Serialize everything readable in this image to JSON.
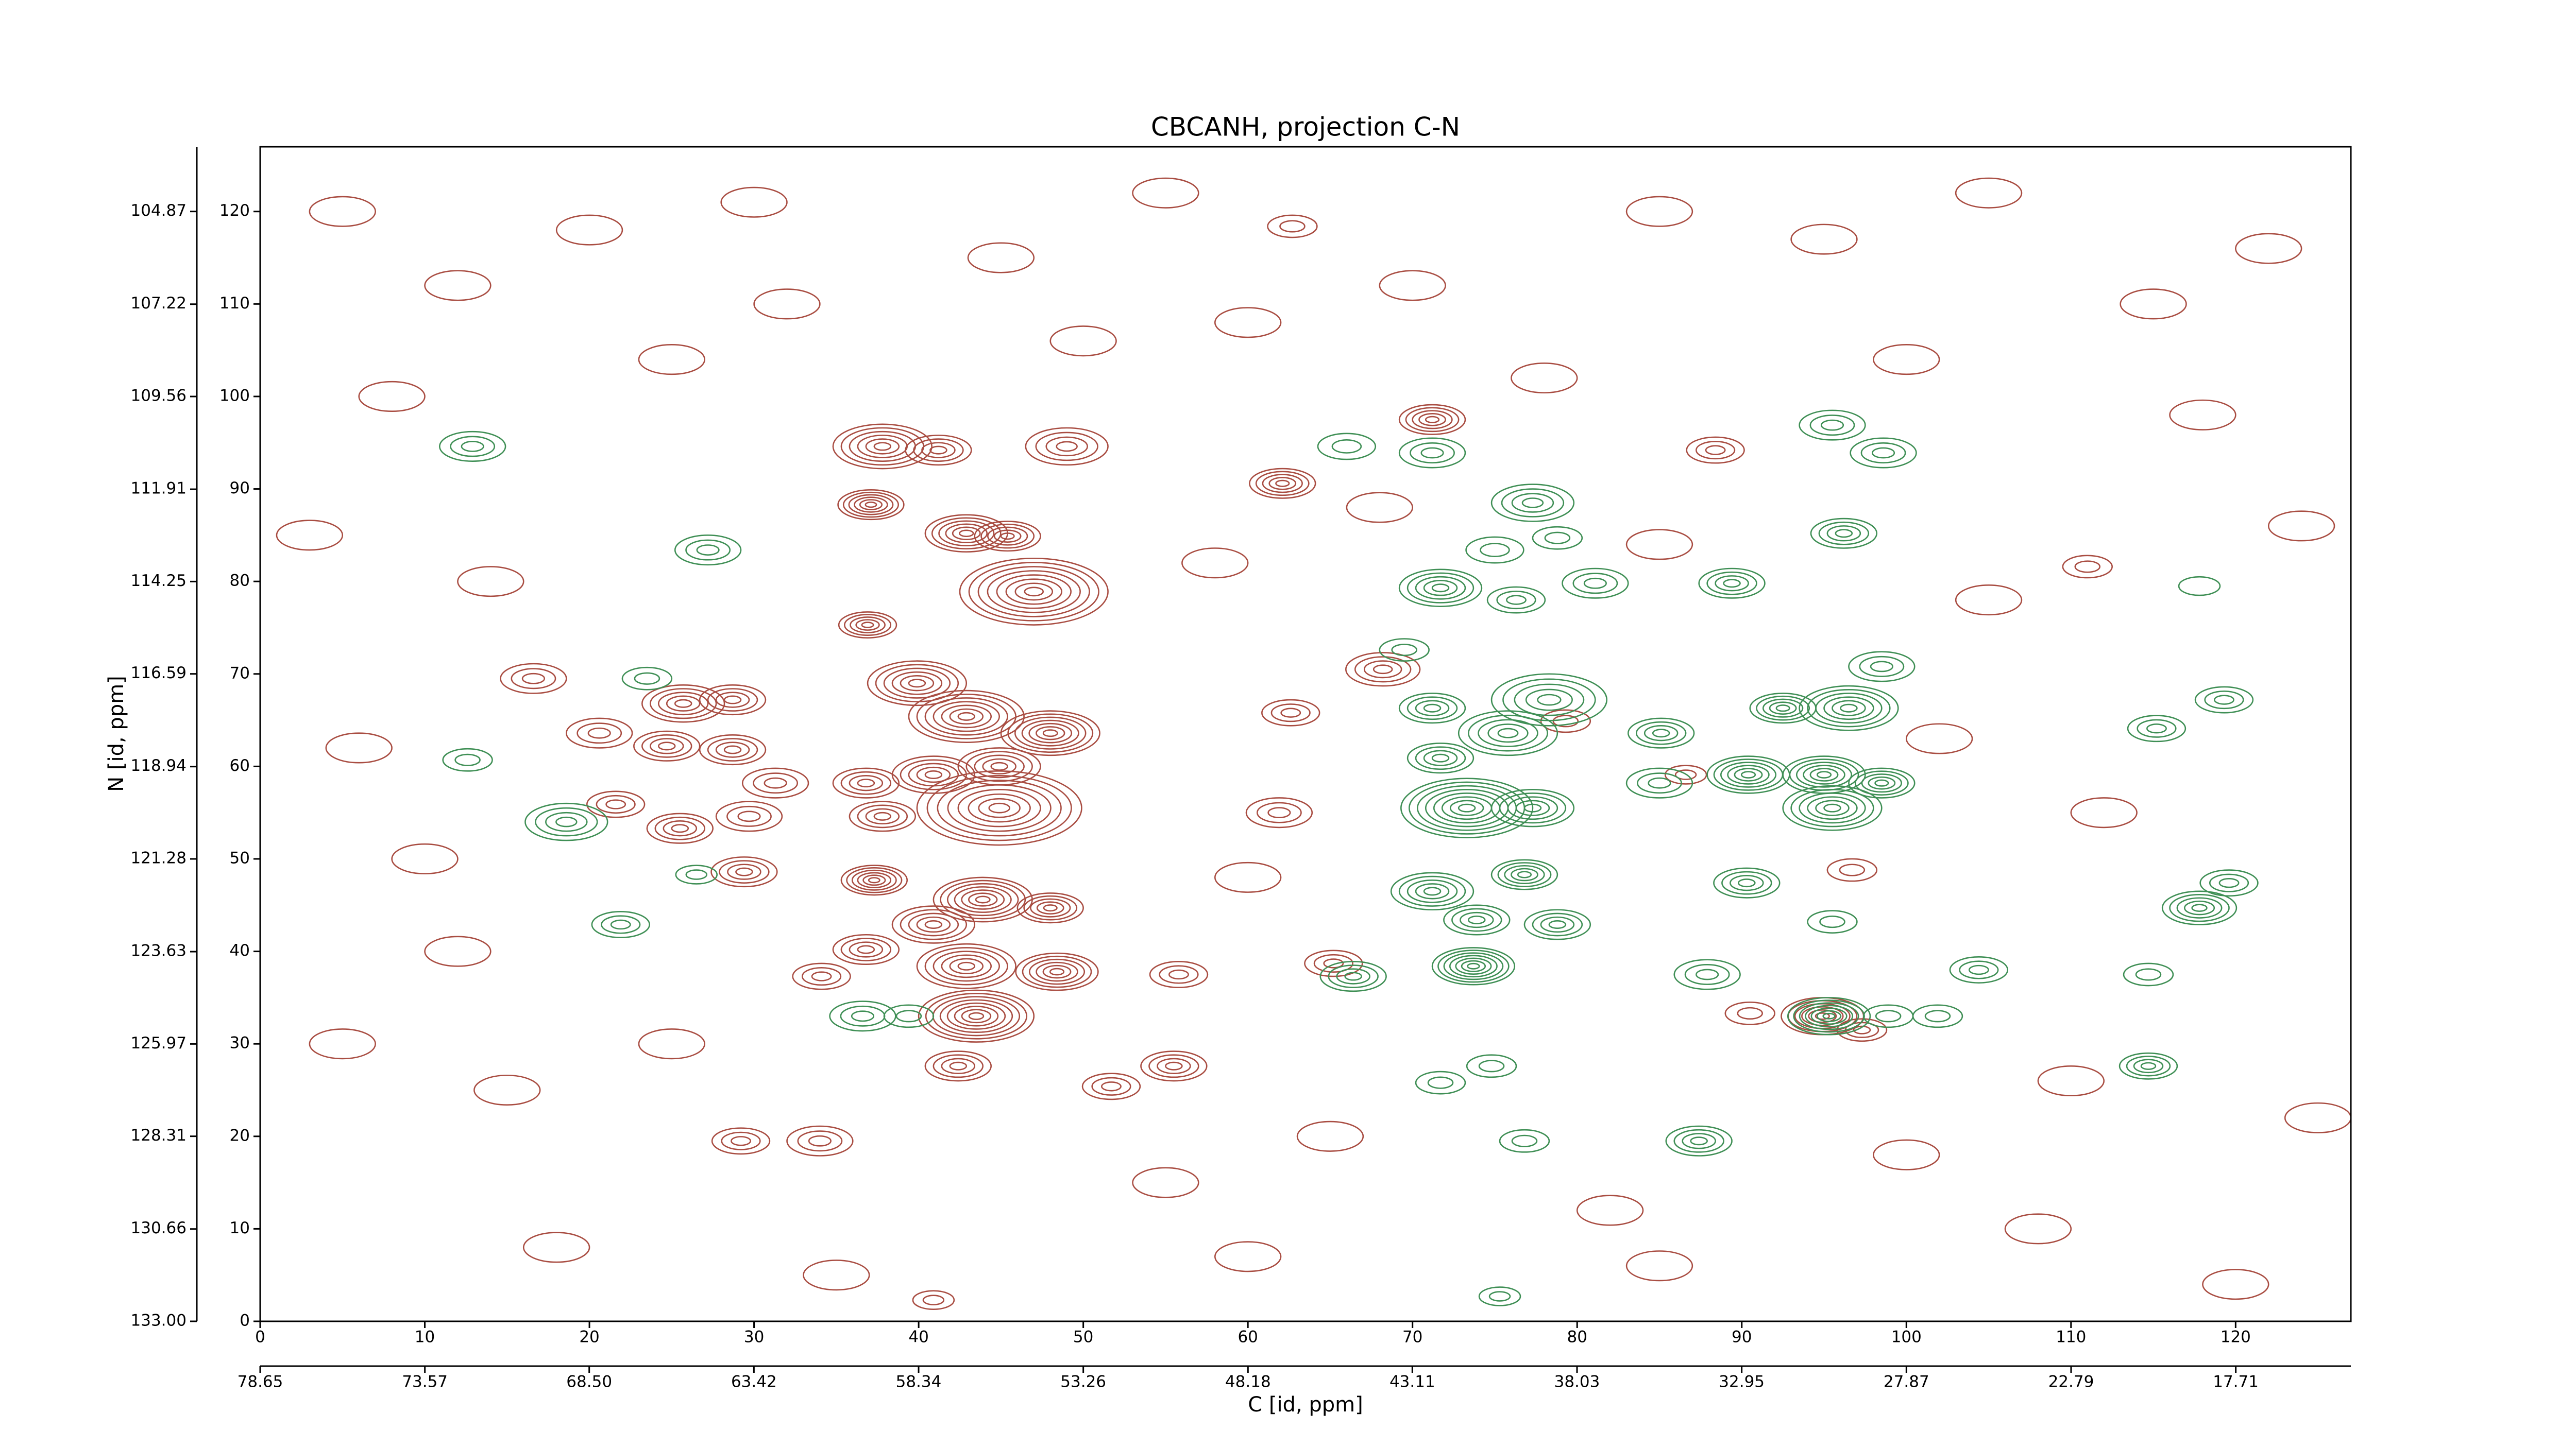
{
  "chart_data": {
    "type": "contour",
    "title": "CBCANH, projection C-N",
    "xlabel": "C [id, ppm]",
    "ylabel": "N [id, ppm]",
    "xlim": [
      0,
      127
    ],
    "ylim": [
      0,
      127
    ],
    "xticks": [
      0,
      10,
      20,
      30,
      40,
      50,
      60,
      70,
      80,
      90,
      100,
      110,
      120
    ],
    "yticks": [
      0,
      10,
      20,
      30,
      40,
      50,
      60,
      70,
      80,
      90,
      100,
      110,
      120
    ],
    "x2lim": [
      78.65,
      14.16
    ],
    "x2ticks": [
      78.65,
      73.57,
      {
        "value": 68.5,
        "label": "68.50"
      },
      63.42,
      58.34,
      53.26,
      48.18,
      43.11,
      38.03,
      32.95,
      27.87,
      22.79,
      17.71
    ],
    "y2lim": [
      133,
      103.23
    ],
    "y2ticks": [
      {
        "value": 133,
        "label": "133.00"
      },
      130.66,
      128.31,
      125.97,
      123.63,
      121.28,
      118.94,
      116.59,
      114.25,
      111.91,
      109.56,
      107.22,
      104.87
    ],
    "series": [
      {
        "color": "#a94d42",
        "x": [
          37.8,
          41.2,
          49,
          37.1,
          42.9,
          45.4,
          47,
          36.9,
          71.2,
          62.1,
          88.4,
          16.6,
          25.7,
          28.7,
          20.6,
          24.7,
          28.7,
          39.9,
          42.9,
          48,
          44.9,
          40.9,
          36.8,
          44.9,
          31.3,
          21.6,
          25.5,
          29.7,
          37.8,
          29.4,
          37.3,
          43.9,
          48,
          40.9,
          36.8,
          42.9,
          48.4,
          34.1,
          43.5,
          42.4,
          55.5,
          51.7,
          55.8,
          68.2,
          62.6,
          61.9,
          65.2,
          29.2,
          34,
          79.3,
          94.9,
          96.7,
          111,
          97.3,
          62.7,
          90.5,
          86.6,
          40.9,
          5,
          12,
          20,
          30,
          45,
          55,
          60,
          70,
          85,
          95,
          105,
          115,
          122,
          8,
          25,
          50,
          78,
          100,
          118,
          3,
          14,
          58,
          85,
          105,
          124,
          6,
          10,
          12,
          5,
          15,
          25,
          55,
          65,
          82,
          100,
          110,
          125,
          18,
          35,
          60,
          85,
          108,
          120,
          32,
          68,
          102,
          112,
          60
        ],
        "y": [
          94.6,
          94.2,
          94.6,
          88.3,
          85.2,
          84.9,
          78.9,
          75.3,
          97.5,
          90.6,
          94.2,
          69.5,
          66.8,
          67.2,
          63.6,
          62.2,
          61.8,
          69,
          65.4,
          63.6,
          60,
          59.1,
          58.2,
          55.5,
          58.2,
          55.9,
          53.3,
          54.6,
          54.6,
          48.6,
          47.7,
          45.6,
          44.7,
          42.9,
          40.2,
          38.4,
          37.8,
          37.3,
          33,
          27.6,
          27.6,
          25.4,
          37.5,
          70.5,
          65.8,
          55,
          38.7,
          19.5,
          19.5,
          64.9,
          33,
          48.8,
          81.6,
          31.5,
          118.4,
          33.3,
          59.1,
          2.3,
          120,
          112,
          118,
          121,
          115,
          122,
          108,
          112,
          120,
          117,
          122,
          110,
          116,
          100,
          104,
          106,
          102,
          104,
          98,
          85,
          80,
          82,
          84,
          78,
          86,
          62,
          50,
          40,
          30,
          25,
          30,
          15,
          20,
          12,
          18,
          26,
          22,
          8,
          5,
          7,
          6,
          10,
          4,
          110,
          88,
          63,
          55,
          48
        ],
        "widths": [
          6,
          4,
          5,
          4,
          5,
          4,
          9,
          3.5,
          4,
          4,
          3.5,
          4,
          5,
          4,
          4,
          4,
          4,
          6,
          7,
          6,
          5,
          5,
          4,
          10,
          4,
          3.5,
          4,
          4,
          4,
          4,
          4,
          6,
          4,
          5,
          4,
          6,
          5,
          3.5,
          7,
          4,
          4,
          3.5,
          3.5,
          4.5,
          3.5,
          4,
          3.5,
          3.5,
          4,
          3,
          5,
          3,
          3,
          3,
          3,
          3,
          2.5,
          2.5,
          4,
          4,
          4,
          4,
          4,
          4,
          4,
          4,
          4,
          4,
          4,
          4,
          4,
          4,
          4,
          4,
          4,
          4,
          4,
          4,
          4,
          4,
          4,
          4,
          4,
          4,
          4,
          4,
          4,
          4,
          4,
          4,
          4,
          4,
          4,
          4,
          4,
          4,
          4,
          4,
          4,
          4,
          4,
          4,
          4,
          4,
          4,
          4
        ],
        "levels": [
          6,
          4,
          4,
          6,
          6,
          5,
          8,
          5,
          5,
          5,
          3,
          3,
          5,
          4,
          3,
          4,
          4,
          6,
          7,
          7,
          5,
          5,
          4,
          8,
          3,
          3,
          4,
          3,
          4,
          4,
          6,
          7,
          5,
          5,
          4,
          6,
          6,
          3,
          8,
          4,
          4,
          3,
          3,
          4,
          3,
          3,
          3,
          3,
          3,
          2,
          6,
          2,
          2,
          3,
          2,
          2,
          2,
          2,
          1,
          1,
          1,
          1,
          1,
          1,
          1,
          1,
          1,
          1,
          1,
          1,
          1,
          1,
          1,
          1,
          1,
          1,
          1,
          1,
          1,
          1,
          1,
          1,
          1,
          1,
          1,
          1,
          1,
          1,
          1,
          1,
          1,
          1,
          1,
          1,
          1,
          1,
          1,
          1,
          1,
          1,
          1,
          1,
          1,
          1,
          1,
          1
        ]
      },
      {
        "color": "#3f8f55",
        "x": [
          12.9,
          27.2,
          23.5,
          12.6,
          18.6,
          21.9,
          26.5,
          36.6,
          39.4,
          71.2,
          66,
          77.3,
          78.8,
          75,
          71.7,
          76.3,
          81.1,
          69.5,
          78.3,
          71.2,
          75.8,
          71.7,
          85.1,
          85,
          89.4,
          95.5,
          98.6,
          96.2,
          98.5,
          92.5,
          96.5,
          90.4,
          95,
          98.5,
          95.5,
          73.3,
          77.3,
          71.2,
          76.8,
          73.9,
          78.8,
          73.7,
          66.4,
          90.3,
          95.5,
          87.9,
          95.3,
          104.4,
          114.7,
          114.7,
          117.8,
          119.6,
          119.3,
          115.2,
          117.8,
          87.4,
          76.8,
          71.7,
          74.8,
          98.9,
          101.9,
          75.3
        ],
        "y": [
          94.6,
          83.4,
          69.5,
          60.7,
          54,
          42.9,
          48.3,
          33,
          33,
          93.9,
          94.6,
          88.5,
          84.7,
          83.4,
          79.3,
          78,
          79.8,
          72.6,
          67.2,
          66.3,
          63.6,
          60.9,
          63.6,
          58.2,
          79.8,
          96.9,
          93.9,
          85.2,
          70.8,
          66.3,
          66.3,
          59.1,
          59.1,
          58.2,
          55.5,
          55.5,
          55.5,
          46.5,
          48.3,
          43.4,
          42.9,
          38.4,
          37.3,
          47.4,
          43.2,
          37.5,
          33,
          38,
          37.5,
          27.6,
          44.7,
          47.4,
          67.2,
          64.1,
          79.5,
          19.5,
          19.5,
          25.8,
          27.6,
          33,
          33,
          2.7
        ],
        "widths": [
          4,
          4,
          3,
          3,
          5,
          3.5,
          2.5,
          4,
          3,
          4,
          3.5,
          5,
          3,
          3.5,
          5,
          3.5,
          4,
          3,
          7,
          4,
          6,
          4,
          4,
          4,
          4,
          4,
          4,
          4,
          4,
          4,
          6,
          5,
          5,
          4,
          6,
          8,
          5,
          5,
          4,
          4,
          4,
          5,
          4,
          4,
          3,
          4,
          5,
          3.5,
          3,
          3.5,
          4.5,
          3.5,
          3.5,
          3.5,
          2.5,
          4,
          3,
          3,
          3,
          3,
          3,
          2.5
        ],
        "levels": [
          3,
          3,
          2,
          2,
          4,
          3,
          2,
          3,
          2,
          3,
          2,
          4,
          2,
          2,
          5,
          3,
          3,
          2,
          5,
          4,
          5,
          4,
          4,
          3,
          4,
          3,
          3,
          4,
          3,
          5,
          6,
          6,
          6,
          5,
          6,
          8,
          5,
          5,
          5,
          4,
          4,
          7,
          4,
          4,
          2,
          3,
          7,
          3,
          2,
          4,
          5,
          3,
          3,
          3,
          1,
          4,
          2,
          2,
          2,
          2,
          2,
          2
        ]
      }
    ]
  }
}
